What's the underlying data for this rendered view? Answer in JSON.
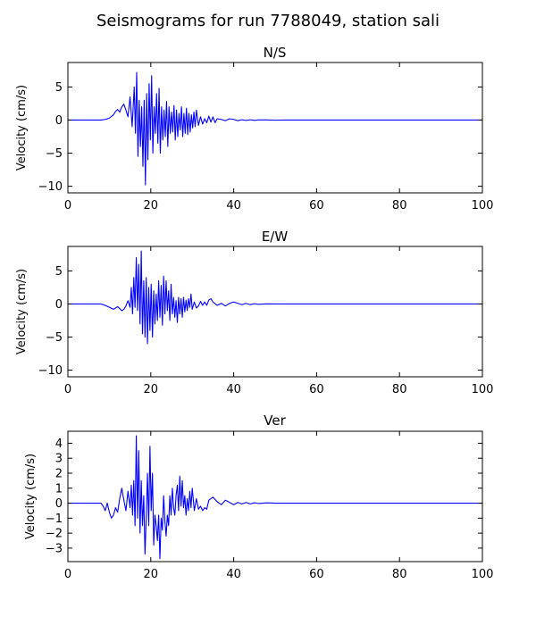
{
  "figure_title": "Seismograms for run 7788049, station sali",
  "chart_data": [
    {
      "type": "line",
      "title": "N/S",
      "xlabel": "",
      "ylabel": "Velocity (cm/s)",
      "xlim": [
        0,
        100
      ],
      "ylim": [
        -11,
        8.7
      ],
      "xticks": [
        0,
        20,
        40,
        60,
        80,
        100
      ],
      "yticks": [
        -10,
        -5,
        0,
        5
      ],
      "grid": false,
      "series": [
        {
          "color": "#0000ff",
          "x": [
            0,
            8,
            9,
            10,
            11,
            11.5,
            12,
            12.5,
            13,
            13.5,
            14,
            14.5,
            15,
            15.5,
            16,
            16.3,
            16.6,
            16.9,
            17.2,
            17.5,
            17.8,
            18.1,
            18.4,
            18.7,
            19,
            19.3,
            19.6,
            19.9,
            20.2,
            20.5,
            20.8,
            21.1,
            21.4,
            21.7,
            22,
            22.3,
            22.6,
            22.9,
            23.2,
            23.5,
            23.8,
            24.1,
            24.4,
            24.7,
            25,
            25.3,
            25.6,
            25.9,
            26.2,
            26.5,
            26.8,
            27.1,
            27.4,
            27.7,
            28,
            28.3,
            28.6,
            28.9,
            29.2,
            29.5,
            29.8,
            30.1,
            30.4,
            30.7,
            31,
            31.5,
            32,
            32.5,
            33,
            33.5,
            34,
            34.5,
            35,
            35.5,
            36,
            37,
            38,
            39,
            40,
            41,
            42,
            43,
            44,
            45,
            46,
            48,
            50,
            52,
            55,
            60,
            100
          ],
          "y": [
            0,
            0,
            0.1,
            0.3,
            0.8,
            1.3,
            1.6,
            1.2,
            2.0,
            2.4,
            1.5,
            0.5,
            3.5,
            -1.0,
            5.0,
            -2.0,
            7.2,
            -5.5,
            3.0,
            -4.0,
            2.0,
            -7.0,
            3.0,
            -9.8,
            4.0,
            -6.0,
            5.5,
            -3.0,
            6.7,
            -5.0,
            2.0,
            -2.0,
            4.0,
            -3.5,
            4.8,
            -5.0,
            2.0,
            -3.0,
            1.5,
            -2.5,
            2.8,
            -4.0,
            2.0,
            -2.0,
            1.2,
            -1.8,
            2.2,
            -3.0,
            1.5,
            -2.5,
            1.0,
            -1.5,
            2.0,
            -2.5,
            1.0,
            -2.0,
            1.8,
            -2.2,
            1.0,
            -1.8,
            0.8,
            -1.2,
            1.2,
            -1.0,
            1.5,
            -0.8,
            0.5,
            -0.6,
            0.2,
            -0.4,
            0.6,
            -0.3,
            0.5,
            -0.4,
            0.2,
            0.1,
            -0.1,
            0.2,
            0.1,
            -0.1,
            0.05,
            -0.05,
            0.05,
            -0.05,
            0.02,
            0.02,
            -0.02,
            0,
            0,
            0,
            0
          ]
        }
      ]
    },
    {
      "type": "line",
      "title": "E/W",
      "xlabel": "",
      "ylabel": "Velocity (cm/s)",
      "xlim": [
        0,
        100
      ],
      "ylim": [
        -11,
        8.7
      ],
      "xticks": [
        0,
        20,
        40,
        60,
        80,
        100
      ],
      "yticks": [
        -10,
        -5,
        0,
        5
      ],
      "grid": false,
      "series": [
        {
          "color": "#0000ff",
          "x": [
            0,
            8,
            9,
            10,
            11,
            12,
            13,
            13.5,
            14,
            14.5,
            15,
            15.3,
            15.6,
            15.9,
            16.2,
            16.5,
            16.8,
            17.1,
            17.4,
            17.7,
            18,
            18.3,
            18.6,
            18.9,
            19.2,
            19.5,
            19.8,
            20.1,
            20.4,
            20.7,
            21,
            21.3,
            21.6,
            21.9,
            22.2,
            22.5,
            22.8,
            23.1,
            23.4,
            23.7,
            24,
            24.3,
            24.6,
            24.9,
            25.2,
            25.5,
            25.8,
            26.1,
            26.4,
            26.7,
            27,
            27.3,
            27.6,
            27.9,
            28.2,
            28.5,
            28.8,
            29.1,
            29.4,
            29.7,
            30,
            30.5,
            31,
            31.5,
            32,
            32.5,
            33,
            33.5,
            34,
            34.5,
            35,
            36,
            37,
            38,
            39,
            40,
            41,
            42,
            43,
            44,
            45,
            46,
            48,
            50,
            52,
            55,
            60,
            100
          ],
          "y": [
            0,
            0,
            -0.2,
            -0.5,
            -0.8,
            -0.4,
            -1.0,
            -0.8,
            -0.3,
            0.5,
            -0.5,
            2.5,
            -1.5,
            4.0,
            -0.5,
            7.0,
            -1.0,
            6.0,
            -3.0,
            8.0,
            -4.5,
            3.5,
            -5.0,
            4.0,
            -6.0,
            2.5,
            -4.0,
            3.0,
            -5.0,
            2.0,
            -3.0,
            1.5,
            -2.5,
            3.5,
            -2.0,
            2.8,
            -3.2,
            4.2,
            -1.5,
            3.5,
            -1.0,
            2.0,
            -2.5,
            3.0,
            -1.5,
            1.0,
            -2.0,
            0.5,
            -2.8,
            1.0,
            -1.5,
            0.8,
            -2.0,
            1.0,
            -1.2,
            0.6,
            -1.0,
            0.8,
            -0.5,
            1.5,
            -0.8,
            0.3,
            -0.6,
            -0.3,
            0.4,
            -0.2,
            0.3,
            -0.2,
            0.6,
            0.8,
            0.3,
            -0.2,
            0.1,
            -0.3,
            0.1,
            0.3,
            0.1,
            -0.1,
            0.1,
            -0.1,
            0.05,
            -0.05,
            0.02,
            0,
            0,
            0,
            0,
            0
          ]
        }
      ]
    },
    {
      "type": "line",
      "title": "Ver",
      "xlabel": "",
      "ylabel": "Velocity (cm/s)",
      "xlim": [
        0,
        100
      ],
      "ylim": [
        -3.9,
        4.8
      ],
      "xticks": [
        0,
        20,
        40,
        60,
        80,
        100
      ],
      "yticks": [
        -3,
        -2,
        -1,
        0,
        1,
        2,
        3,
        4
      ],
      "grid": false,
      "series": [
        {
          "color": "#0000ff",
          "x": [
            0,
            8,
            8.5,
            9,
            9.5,
            10,
            10.5,
            11,
            11.5,
            12,
            12.5,
            13,
            13.5,
            14,
            14.5,
            15,
            15.3,
            15.6,
            15.9,
            16.2,
            16.5,
            16.8,
            17.1,
            17.4,
            17.7,
            18,
            18.3,
            18.6,
            18.9,
            19.2,
            19.5,
            19.8,
            20.1,
            20.4,
            20.7,
            21,
            21.3,
            21.6,
            21.9,
            22.2,
            22.5,
            22.8,
            23.1,
            23.4,
            23.7,
            24,
            24.3,
            24.6,
            24.9,
            25.2,
            25.5,
            25.8,
            26.1,
            26.4,
            26.7,
            27,
            27.3,
            27.6,
            27.9,
            28.2,
            28.5,
            28.8,
            29.1,
            29.4,
            29.7,
            30,
            30.5,
            31,
            31.5,
            32,
            32.5,
            33,
            33.5,
            34,
            35,
            36,
            37,
            38,
            39,
            40,
            41,
            42,
            43,
            44,
            45,
            46,
            48,
            50,
            52,
            55,
            60,
            100
          ],
          "y": [
            0,
            0,
            -0.2,
            -0.5,
            0,
            -0.6,
            -1.0,
            -0.8,
            -0.3,
            -0.6,
            0.3,
            1.0,
            0.2,
            -0.5,
            0.8,
            -0.3,
            1.2,
            -0.8,
            1.5,
            -1.5,
            4.5,
            -1.0,
            3.5,
            -2.0,
            1.5,
            -1.5,
            0.5,
            -3.4,
            -1.0,
            2.0,
            -1.5,
            3.8,
            -0.5,
            2.0,
            -2.8,
            -0.8,
            -1.5,
            -2.5,
            -0.8,
            -3.7,
            -1.0,
            -1.8,
            0.5,
            -1.2,
            -2.2,
            -0.8,
            -1.5,
            0.5,
            -0.8,
            1.0,
            -0.3,
            -0.8,
            0.5,
            1.2,
            -0.5,
            1.8,
            -0.2,
            1.5,
            -0.3,
            0.5,
            -0.8,
            0.3,
            -0.5,
            0.8,
            -0.3,
            1.0,
            -0.5,
            0.3,
            -0.4,
            -0.2,
            -0.5,
            -0.3,
            -0.4,
            0.2,
            0.4,
            0.1,
            -0.1,
            0.2,
            0.05,
            -0.1,
            0.05,
            -0.05,
            0.05,
            -0.05,
            0.02,
            -0.02,
            0.02,
            0,
            0,
            0,
            0,
            0
          ]
        }
      ]
    }
  ]
}
